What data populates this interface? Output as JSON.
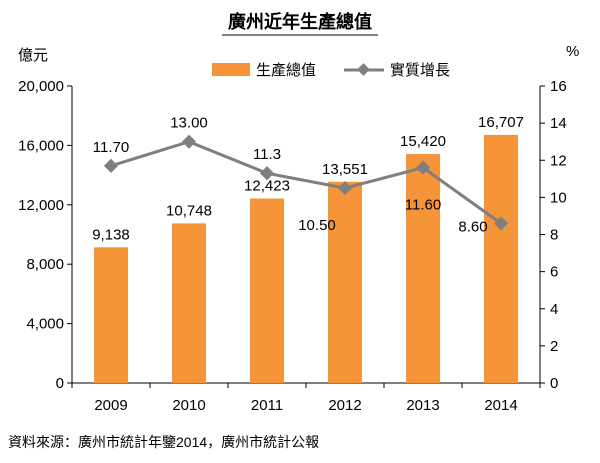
{
  "chart_data": {
    "type": "bar+line",
    "title": "廣州近年生產總值",
    "categories": [
      "2009",
      "2010",
      "2011",
      "2012",
      "2013",
      "2014"
    ],
    "y_left": {
      "unit": "億元",
      "min": 0,
      "max": 20000,
      "ticks": [
        "0",
        "4,000",
        "8,000",
        "12,000",
        "16,000",
        "20,000"
      ]
    },
    "y_right": {
      "unit": "%",
      "min": 0,
      "max": 16,
      "ticks": [
        "0",
        "2",
        "4",
        "6",
        "8",
        "10",
        "12",
        "14",
        "16"
      ]
    },
    "series": [
      {
        "name": "生產總值",
        "type": "bar",
        "axis": "left",
        "values": [
          9138,
          10748,
          12423,
          13551,
          15420,
          16707
        ],
        "labels": [
          "9,138",
          "10,748",
          "12,423",
          "13,551",
          "15,420",
          "16,707"
        ],
        "color": "#F59439"
      },
      {
        "name": "實質增長",
        "type": "line",
        "axis": "right",
        "values": [
          11.7,
          13.0,
          11.3,
          10.5,
          11.6,
          8.6
        ],
        "labels": [
          "11.70",
          "13.00",
          "11.3",
          "10.50",
          "11.60",
          "8.60"
        ],
        "color": "#7F7F7F"
      }
    ],
    "legend": "top",
    "grid": false
  },
  "source": "資料來源：廣州市統計年鑒2014，廣州市統計公報"
}
